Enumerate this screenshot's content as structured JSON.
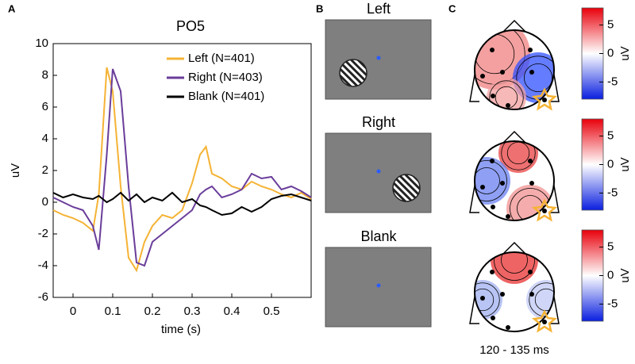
{
  "chart_data": [
    {
      "type": "line",
      "panel": "A",
      "title": "PO5",
      "xlabel": "time (s)",
      "ylabel": "uV",
      "x": [
        -0.05,
        -0.025,
        0,
        0.025,
        0.05,
        0.065,
        0.085,
        0.1,
        0.12,
        0.14,
        0.16,
        0.18,
        0.2,
        0.225,
        0.25,
        0.275,
        0.3,
        0.32,
        0.335,
        0.35,
        0.375,
        0.4,
        0.425,
        0.45,
        0.475,
        0.5,
        0.525,
        0.55,
        0.575,
        0.6
      ],
      "series": [
        {
          "name": "Left (N=401)",
          "color": "#f5b335",
          "values": [
            -0.5,
            -0.8,
            -1.0,
            -1.3,
            -1.8,
            0.5,
            8.5,
            7.0,
            1.0,
            -3.5,
            -4.3,
            -2.5,
            -1.5,
            -0.8,
            -1.0,
            -0.5,
            1.2,
            3.0,
            3.5,
            1.8,
            1.5,
            1.0,
            0.8,
            1.3,
            1.0,
            0.8,
            0.5,
            0.3,
            0.6,
            0.2
          ]
        },
        {
          "name": "Right (N=403)",
          "color": "#6a3d9a",
          "values": [
            0.3,
            0,
            -0.3,
            -0.5,
            -1.5,
            -3.0,
            3.0,
            8.4,
            7.0,
            1.0,
            -3.8,
            -4.0,
            -2.5,
            -2.0,
            -1.5,
            -1.0,
            -0.5,
            0.5,
            0.8,
            1.0,
            0.3,
            0.5,
            0.8,
            1.8,
            1.5,
            1.6,
            0.8,
            1.0,
            0.7,
            0.3
          ]
        },
        {
          "name": "Blank (N=401)",
          "color": "#000000",
          "values": [
            0.6,
            0.3,
            0.5,
            0.3,
            0.2,
            0.4,
            0,
            0.2,
            0.6,
            0.1,
            0.5,
            0,
            0.3,
            0.1,
            0.6,
            0,
            0.2,
            -0.2,
            -0.3,
            -0.5,
            -0.8,
            -0.7,
            -0.3,
            -0.6,
            -0.3,
            0.2,
            0.4,
            0.5,
            0.3,
            0.1
          ]
        }
      ],
      "xlim": [
        -0.05,
        0.6
      ],
      "ylim": [
        -6,
        10
      ],
      "xticks": [
        0,
        0.1,
        0.2,
        0.3,
        0.4,
        0.5
      ],
      "yticks": [
        -6,
        -4,
        -2,
        0,
        2,
        4,
        6,
        8,
        10
      ]
    }
  ],
  "stimuli": {
    "panel": "B",
    "labels": [
      "Left",
      "Right",
      "Blank"
    ]
  },
  "topography": {
    "panel": "C",
    "caption": "120 - 135 ms",
    "colorbar": {
      "label": "uV",
      "lim": [
        -8,
        8
      ],
      "ticks": [
        5,
        0,
        -5
      ]
    }
  }
}
